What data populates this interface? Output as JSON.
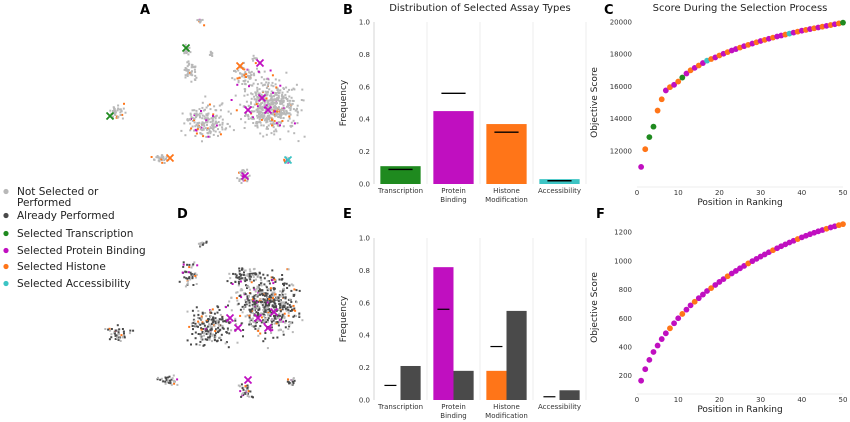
{
  "colors": {
    "not_selected": "#b8b8b8",
    "already_performed": "#4a4a4a",
    "transcription": "#1f8a1f",
    "protein_binding": "#c00fc0",
    "histone": "#ff7518",
    "accessibility": "#3cc4c4",
    "target_line": "#000000"
  },
  "panel_labels": [
    "A",
    "B",
    "C",
    "D",
    "E",
    "F"
  ],
  "legend": [
    {
      "label_lines": [
        "Not Selected or",
        "Performed"
      ],
      "color": "#b8b8b8"
    },
    {
      "label_lines": [
        "Already Performed"
      ],
      "color": "#4a4a4a"
    },
    {
      "label_lines": [
        "Selected Transcription"
      ],
      "color": "#1f8a1f"
    },
    {
      "label_lines": [
        "Selected Protein Binding"
      ],
      "color": "#c00fc0"
    },
    {
      "label_lines": [
        "Selected Histone"
      ],
      "color": "#ff7518"
    },
    {
      "label_lines": [
        "Selected Accessibility"
      ],
      "color": "#3cc4c4"
    }
  ],
  "chart_data": [
    {
      "panel": "B",
      "type": "bar",
      "title": "Distribution of Selected Assay Types",
      "ylabel": "Frequency",
      "xlabel": "",
      "ylim": [
        0,
        1.0
      ],
      "yticks": [
        "0.0",
        "0.2",
        "0.4",
        "0.6",
        "0.8",
        "1.0"
      ],
      "categories": [
        "Transcription",
        "Protein\nBinding",
        "Histone\nModification",
        "Accessibility"
      ],
      "values": [
        0.11,
        0.45,
        0.37,
        0.03
      ],
      "target_values": [
        0.09,
        0.56,
        0.32,
        0.02
      ],
      "grid": false
    },
    {
      "panel": "C",
      "type": "scatter",
      "title": "Score During the Selection Process",
      "xlabel": "Position in Ranking",
      "ylabel": "Objective Score",
      "xlim": [
        0,
        50
      ],
      "ylim": [
        10000,
        20000
      ],
      "xticks": [
        "0",
        "10",
        "20",
        "30",
        "40",
        "50"
      ],
      "yticks": [
        "12000",
        "14000",
        "16000",
        "18000",
        "20000"
      ],
      "x": [
        1,
        2,
        3,
        4,
        5,
        6,
        7,
        8,
        9,
        10,
        11,
        12,
        13,
        14,
        15,
        16,
        17,
        18,
        19,
        20,
        21,
        22,
        23,
        24,
        25,
        26,
        27,
        28,
        29,
        30,
        31,
        32,
        33,
        34,
        35,
        36,
        37,
        38,
        39,
        40,
        41,
        42,
        43,
        44,
        45,
        46,
        47,
        48,
        49,
        50
      ],
      "y": [
        11000,
        12100,
        12850,
        13500,
        14500,
        15200,
        15750,
        15950,
        16100,
        16300,
        16550,
        16800,
        17000,
        17150,
        17300,
        17450,
        17600,
        17700,
        17800,
        17920,
        18030,
        18130,
        18230,
        18320,
        18410,
        18500,
        18580,
        18660,
        18740,
        18820,
        18890,
        18960,
        19030,
        19100,
        19160,
        19220,
        19280,
        19340,
        19400,
        19460,
        19510,
        19560,
        19610,
        19660,
        19710,
        19760,
        19810,
        19860,
        19910,
        19960
      ],
      "point_types": [
        "protein_binding",
        "histone",
        "transcription",
        "transcription",
        "histone",
        "histone",
        "protein_binding",
        "histone",
        "protein_binding",
        "histone",
        "transcription",
        "protein_binding",
        "histone",
        "protein_binding",
        "histone",
        "protein_binding",
        "accessibility",
        "histone",
        "protein_binding",
        "histone",
        "protein_binding",
        "histone",
        "protein_binding",
        "protein_binding",
        "histone",
        "protein_binding",
        "histone",
        "protein_binding",
        "histone",
        "protein_binding",
        "histone",
        "protein_binding",
        "histone",
        "protein_binding",
        "protein_binding",
        "histone",
        "accessibility",
        "protein_binding",
        "histone",
        "protein_binding",
        "histone",
        "protein_binding",
        "histone",
        "protein_binding",
        "histone",
        "protein_binding",
        "histone",
        "protein_binding",
        "histone",
        "transcription"
      ],
      "grid": false
    },
    {
      "panel": "E",
      "type": "bar",
      "title": "",
      "ylabel": "Frequency",
      "xlabel": "",
      "ylim": [
        0,
        1.0
      ],
      "yticks": [
        "0.0",
        "0.2",
        "0.4",
        "0.6",
        "0.8",
        "1.0"
      ],
      "categories": [
        "Transcription",
        "Protein\nBinding",
        "Histone\nModification",
        "Accessibility"
      ],
      "series": [
        {
          "values": [
            0.0,
            0.82,
            0.18,
            0.0
          ]
        },
        {
          "values": [
            0.21,
            0.18,
            0.55,
            0.06
          ]
        }
      ],
      "target_values": [
        0.09,
        0.56,
        0.33,
        0.02
      ],
      "grid": false
    },
    {
      "panel": "F",
      "type": "scatter",
      "title": "",
      "xlabel": "Position in Ranking",
      "ylabel": "Objective Score",
      "xlim": [
        0,
        50
      ],
      "ylim": [
        100,
        1250
      ],
      "xticks": [
        "0",
        "10",
        "20",
        "30",
        "40",
        "50"
      ],
      "yticks": [
        "200",
        "400",
        "600",
        "800",
        "1000",
        "1200"
      ],
      "x": [
        1,
        2,
        3,
        4,
        5,
        6,
        7,
        8,
        9,
        10,
        11,
        12,
        13,
        14,
        15,
        16,
        17,
        18,
        19,
        20,
        21,
        22,
        23,
        24,
        25,
        26,
        27,
        28,
        29,
        30,
        31,
        32,
        33,
        34,
        35,
        36,
        37,
        38,
        39,
        40,
        41,
        42,
        43,
        44,
        45,
        46,
        47,
        48,
        49,
        50
      ],
      "y": [
        165,
        245,
        310,
        365,
        410,
        455,
        495,
        530,
        565,
        600,
        630,
        660,
        690,
        715,
        740,
        765,
        790,
        810,
        832,
        853,
        873,
        893,
        912,
        930,
        948,
        965,
        982,
        998,
        1014,
        1030,
        1045,
        1060,
        1074,
        1088,
        1102,
        1115,
        1128,
        1140,
        1152,
        1164,
        1175,
        1186,
        1196,
        1206,
        1215,
        1224,
        1233,
        1241,
        1249,
        1256
      ],
      "point_types": [
        "protein_binding",
        "protein_binding",
        "protein_binding",
        "protein_binding",
        "protein_binding",
        "protein_binding",
        "protein_binding",
        "histone",
        "protein_binding",
        "protein_binding",
        "histone",
        "protein_binding",
        "protein_binding",
        "histone",
        "protein_binding",
        "protein_binding",
        "protein_binding",
        "histone",
        "protein_binding",
        "protein_binding",
        "protein_binding",
        "histone",
        "protein_binding",
        "protein_binding",
        "protein_binding",
        "protein_binding",
        "histone",
        "protein_binding",
        "protein_binding",
        "protein_binding",
        "protein_binding",
        "protein_binding",
        "histone",
        "protein_binding",
        "protein_binding",
        "protein_binding",
        "protein_binding",
        "protein_binding",
        "histone",
        "protein_binding",
        "protein_binding",
        "protein_binding",
        "protein_binding",
        "protein_binding",
        "protein_binding",
        "histone",
        "protein_binding",
        "protein_binding",
        "histone",
        "histone"
      ],
      "grid": false
    }
  ]
}
